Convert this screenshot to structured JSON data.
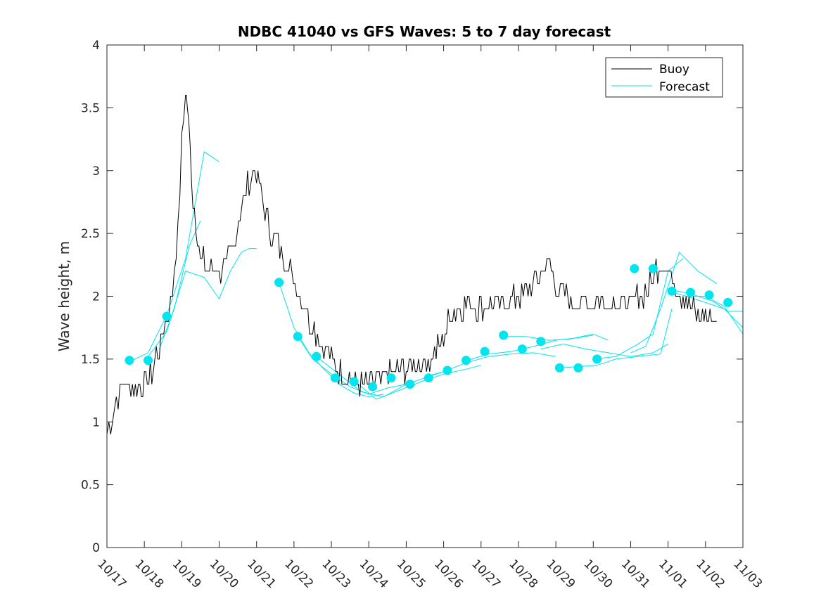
{
  "chart_data": {
    "type": "line",
    "title": "NDBC 41040 vs GFS Waves: 5 to 7 day forecast",
    "xlabel": "",
    "ylabel": "Wave height, m",
    "xlim": [
      0,
      17
    ],
    "ylim": [
      0,
      4
    ],
    "x_units": "days since 10/17",
    "x_tick_values": [
      0,
      1,
      2,
      3,
      4,
      5,
      6,
      7,
      8,
      9,
      10,
      11,
      12,
      13,
      14,
      15,
      16,
      17
    ],
    "x_tick_labels": [
      "10/17",
      "10/18",
      "10/19",
      "10/20",
      "10/21",
      "10/22",
      "10/23",
      "10/24",
      "10/25",
      "10/26",
      "10/27",
      "10/28",
      "10/29",
      "10/30",
      "10/31",
      "11/01",
      "11/02",
      "11/03"
    ],
    "y_tick_values": [
      0,
      0.5,
      1,
      1.5,
      2,
      2.5,
      3,
      3.5,
      4
    ],
    "y_tick_labels": [
      "0",
      "0.5",
      "1",
      "1.5",
      "2",
      "2.5",
      "3",
      "3.5",
      "4"
    ],
    "legend": {
      "position": "top-right",
      "entries": [
        "Buoy",
        "Forecast"
      ]
    },
    "colors": {
      "buoy": "#000000",
      "forecast": "#00e5ee",
      "axes": "#262626"
    },
    "buoy": {
      "name": "Buoy",
      "x": [
        0.0,
        0.1,
        0.2,
        0.3,
        0.4,
        0.5,
        0.6,
        0.8,
        1.0,
        1.2,
        1.4,
        1.6,
        1.7,
        1.8,
        1.9,
        2.0,
        2.1,
        2.15,
        2.3,
        2.5,
        2.7,
        3.0,
        3.2,
        3.4,
        3.6,
        3.8,
        3.9,
        4.0,
        4.15,
        4.3,
        4.5,
        4.7,
        4.9,
        5.2,
        5.5,
        5.8,
        6.0,
        6.2,
        6.4,
        6.6,
        6.8,
        7.0,
        7.2,
        7.4,
        7.6,
        7.8,
        8.0,
        8.2,
        8.5,
        8.8,
        9.0,
        9.2,
        9.4,
        9.6,
        10.0,
        10.5,
        11.0,
        11.3,
        11.6,
        11.8,
        12.0,
        12.2,
        12.4,
        12.6,
        13.0,
        13.5,
        14.0,
        14.3,
        14.6,
        14.8,
        15.0,
        15.2,
        15.4,
        15.6,
        15.8,
        16.0,
        16.2,
        16.3
      ],
      "y": [
        0.95,
        1.0,
        1.1,
        1.2,
        1.3,
        1.3,
        1.28,
        1.3,
        1.28,
        1.4,
        1.6,
        1.8,
        1.95,
        2.2,
        2.5,
        3.2,
        3.7,
        3.55,
        2.8,
        2.3,
        2.25,
        2.2,
        2.25,
        2.4,
        2.7,
        2.9,
        2.95,
        3.0,
        2.8,
        2.6,
        2.45,
        2.35,
        2.2,
        2.0,
        1.75,
        1.6,
        1.5,
        1.42,
        1.38,
        1.3,
        1.3,
        1.28,
        1.32,
        1.35,
        1.38,
        1.4,
        1.42,
        1.45,
        1.45,
        1.55,
        1.7,
        1.85,
        1.9,
        1.95,
        1.9,
        1.95,
        2.0,
        2.05,
        2.2,
        2.3,
        2.1,
        2.0,
        1.95,
        1.95,
        1.95,
        1.95,
        1.95,
        2.0,
        2.15,
        2.3,
        2.2,
        2.1,
        2.0,
        1.95,
        1.85,
        1.85,
        1.85,
        1.8
      ]
    },
    "forecast_lines": [
      {
        "x": [
          0.6,
          1.1,
          1.6,
          2.1,
          2.6,
          3.0
        ],
        "y": [
          1.48,
          1.55,
          1.85,
          2.3,
          3.15,
          3.07
        ]
      },
      {
        "x": [
          1.1,
          1.6,
          2.1,
          2.6,
          3.0,
          3.3
        ],
        "y": [
          1.52,
          1.72,
          2.2,
          2.15,
          1.98,
          2.2
        ]
      },
      {
        "x": [
          1.4,
          1.8,
          2.2,
          2.5
        ],
        "y": [
          1.58,
          1.9,
          2.4,
          2.6
        ]
      },
      {
        "x": [
          3.3,
          3.6,
          3.8,
          4.0
        ],
        "y": [
          2.2,
          2.35,
          2.38,
          2.38
        ]
      },
      {
        "x": [
          4.6,
          5.0,
          5.4,
          5.8,
          6.2,
          6.6,
          7.0,
          7.4
        ],
        "y": [
          2.11,
          1.75,
          1.55,
          1.42,
          1.3,
          1.23,
          1.2,
          1.22
        ]
      },
      {
        "x": [
          5.1,
          5.5,
          6.0,
          6.5,
          7.0,
          7.5,
          8.0
        ],
        "y": [
          1.68,
          1.5,
          1.38,
          1.28,
          1.22,
          1.27,
          1.3
        ]
      },
      {
        "x": [
          5.6,
          6.2,
          6.8,
          7.4,
          8.0,
          8.6,
          9.0
        ],
        "y": [
          1.52,
          1.38,
          1.24,
          1.2,
          1.3,
          1.36,
          1.4
        ]
      },
      {
        "x": [
          6.6,
          7.2,
          7.8,
          8.4,
          9.0,
          9.6,
          10.0
        ],
        "y": [
          1.33,
          1.18,
          1.25,
          1.32,
          1.38,
          1.42,
          1.45
        ]
      },
      {
        "x": [
          8.5,
          9.0,
          9.6,
          10.2,
          10.8,
          11.4,
          12.0
        ],
        "y": [
          1.36,
          1.4,
          1.47,
          1.52,
          1.54,
          1.55,
          1.52
        ]
      },
      {
        "x": [
          9.5,
          10.2,
          10.8,
          11.4,
          12.0,
          12.6,
          13.0
        ],
        "y": [
          1.48,
          1.54,
          1.56,
          1.6,
          1.65,
          1.67,
          1.69
        ]
      },
      {
        "x": [
          10.6,
          11.2,
          11.8,
          12.4,
          13.0,
          13.4
        ],
        "y": [
          1.68,
          1.68,
          1.65,
          1.66,
          1.7,
          1.65
        ]
      },
      {
        "x": [
          11.6,
          12.2,
          12.8,
          13.4,
          14.0,
          14.6,
          15.0
        ],
        "y": [
          1.58,
          1.62,
          1.58,
          1.55,
          1.52,
          1.55,
          1.62
        ]
      },
      {
        "x": [
          12.1,
          12.6,
          13.1,
          13.6,
          14.2,
          14.8,
          15.1
        ],
        "y": [
          1.43,
          1.44,
          1.45,
          1.5,
          1.52,
          1.54,
          1.9
        ]
      },
      {
        "x": [
          13.0,
          13.6,
          14.2,
          14.6,
          15.0,
          15.4
        ],
        "y": [
          1.5,
          1.52,
          1.62,
          1.7,
          2.2,
          2.3
        ]
      },
      {
        "x": [
          14.0,
          14.4,
          14.8,
          15.3,
          15.8,
          16.3
        ],
        "y": [
          1.55,
          1.6,
          1.9,
          2.35,
          2.2,
          2.1
        ]
      },
      {
        "x": [
          15.0,
          15.5,
          16.0,
          16.5,
          17.0
        ],
        "y": [
          2.04,
          2.0,
          1.95,
          1.9,
          1.75
        ]
      },
      {
        "x": [
          15.1,
          15.6,
          16.2,
          16.6,
          17.0
        ],
        "y": [
          2.05,
          2.02,
          1.96,
          1.88,
          1.88
        ]
      },
      {
        "x": [
          15.5,
          16.0,
          16.5,
          17.0
        ],
        "y": [
          2.0,
          2.0,
          1.92,
          1.7
        ]
      }
    ],
    "forecast_points": {
      "name": "Forecast",
      "x": [
        0.6,
        1.1,
        1.6,
        4.6,
        5.1,
        5.6,
        6.1,
        6.6,
        7.1,
        7.6,
        8.1,
        8.6,
        9.1,
        9.6,
        10.1,
        10.6,
        11.1,
        11.6,
        12.1,
        12.6,
        13.1,
        14.1,
        14.6,
        15.1,
        15.6,
        16.1,
        16.6
      ],
      "y": [
        1.49,
        1.49,
        1.84,
        2.11,
        1.68,
        1.52,
        1.35,
        1.32,
        1.28,
        1.35,
        1.3,
        1.35,
        1.41,
        1.49,
        1.56,
        1.69,
        1.58,
        1.64,
        1.43,
        1.43,
        1.5,
        2.22,
        2.22,
        2.04,
        2.03,
        2.01,
        1.95
      ]
    }
  }
}
